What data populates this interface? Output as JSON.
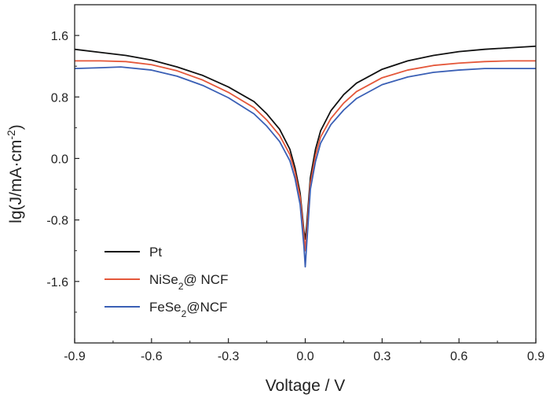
{
  "chart_data": {
    "type": "line",
    "xlabel": "Voltage / V",
    "ylabel": {
      "prefix": "lg(J/mA·cm",
      "sup": "-2",
      "suffix": ")"
    },
    "xlim": [
      -0.9,
      0.9
    ],
    "ylim": [
      -2.4,
      2.0
    ],
    "xticks": [
      -0.9,
      -0.6,
      -0.3,
      0.0,
      0.3,
      0.6,
      0.9
    ],
    "xtick_labels": [
      "-0.9",
      "-0.6",
      "-0.3",
      "0.0",
      "0.3",
      "0.6",
      "0.9"
    ],
    "yticks": [
      -1.6,
      -0.8,
      0.0,
      0.8,
      1.6
    ],
    "ytick_labels": [
      "-1.6",
      "-0.8",
      "0.0",
      "0.8",
      "1.6"
    ],
    "grid": false,
    "legend_position": "bottom-left",
    "series": [
      {
        "name": "Pt",
        "legend": {
          "base": "Pt",
          "sub": "",
          "rest": ""
        },
        "color": "#111111",
        "points": [
          [
            -0.9,
            1.42
          ],
          [
            -0.8,
            1.38
          ],
          [
            -0.7,
            1.34
          ],
          [
            -0.6,
            1.28
          ],
          [
            -0.5,
            1.19
          ],
          [
            -0.4,
            1.08
          ],
          [
            -0.3,
            0.93
          ],
          [
            -0.2,
            0.74
          ],
          [
            -0.15,
            0.58
          ],
          [
            -0.1,
            0.38
          ],
          [
            -0.06,
            0.12
          ],
          [
            -0.04,
            -0.12
          ],
          [
            -0.02,
            -0.45
          ],
          [
            -0.005,
            -0.95
          ],
          [
            0.0,
            -1.05
          ],
          [
            0.005,
            -0.9
          ],
          [
            0.02,
            -0.25
          ],
          [
            0.04,
            0.12
          ],
          [
            0.06,
            0.36
          ],
          [
            0.1,
            0.62
          ],
          [
            0.15,
            0.83
          ],
          [
            0.2,
            0.98
          ],
          [
            0.3,
            1.16
          ],
          [
            0.4,
            1.27
          ],
          [
            0.5,
            1.34
          ],
          [
            0.6,
            1.39
          ],
          [
            0.7,
            1.42
          ],
          [
            0.8,
            1.44
          ],
          [
            0.9,
            1.46
          ]
        ]
      },
      {
        "name": "NiSe2@ NCF",
        "legend": {
          "base": "NiSe",
          "sub": "2",
          "rest": "@ NCF"
        },
        "color": "#e4573a",
        "points": [
          [
            -0.9,
            1.27
          ],
          [
            -0.8,
            1.27
          ],
          [
            -0.7,
            1.26
          ],
          [
            -0.6,
            1.22
          ],
          [
            -0.5,
            1.14
          ],
          [
            -0.4,
            1.02
          ],
          [
            -0.3,
            0.86
          ],
          [
            -0.2,
            0.66
          ],
          [
            -0.15,
            0.5
          ],
          [
            -0.1,
            0.3
          ],
          [
            -0.06,
            0.05
          ],
          [
            -0.04,
            -0.18
          ],
          [
            -0.02,
            -0.5
          ],
          [
            -0.005,
            -1.0
          ],
          [
            0.0,
            -1.2
          ],
          [
            0.005,
            -1.0
          ],
          [
            0.02,
            -0.32
          ],
          [
            0.04,
            0.04
          ],
          [
            0.06,
            0.28
          ],
          [
            0.1,
            0.52
          ],
          [
            0.15,
            0.72
          ],
          [
            0.2,
            0.87
          ],
          [
            0.3,
            1.05
          ],
          [
            0.4,
            1.15
          ],
          [
            0.5,
            1.21
          ],
          [
            0.6,
            1.24
          ],
          [
            0.7,
            1.26
          ],
          [
            0.8,
            1.27
          ],
          [
            0.9,
            1.27
          ]
        ]
      },
      {
        "name": "FeSe2@NCF",
        "legend": {
          "base": "FeSe",
          "sub": "2",
          "rest": "@NCF"
        },
        "color": "#3a5fb5",
        "points": [
          [
            -0.9,
            1.17
          ],
          [
            -0.8,
            1.18
          ],
          [
            -0.72,
            1.19
          ],
          [
            -0.6,
            1.15
          ],
          [
            -0.5,
            1.07
          ],
          [
            -0.4,
            0.95
          ],
          [
            -0.3,
            0.79
          ],
          [
            -0.2,
            0.58
          ],
          [
            -0.15,
            0.42
          ],
          [
            -0.1,
            0.22
          ],
          [
            -0.06,
            -0.03
          ],
          [
            -0.04,
            -0.26
          ],
          [
            -0.02,
            -0.6
          ],
          [
            -0.005,
            -1.15
          ],
          [
            0.0,
            -1.41
          ],
          [
            0.005,
            -1.15
          ],
          [
            0.02,
            -0.4
          ],
          [
            0.04,
            -0.04
          ],
          [
            0.06,
            0.2
          ],
          [
            0.1,
            0.44
          ],
          [
            0.15,
            0.63
          ],
          [
            0.2,
            0.78
          ],
          [
            0.3,
            0.96
          ],
          [
            0.4,
            1.06
          ],
          [
            0.5,
            1.12
          ],
          [
            0.6,
            1.15
          ],
          [
            0.7,
            1.17
          ],
          [
            0.8,
            1.17
          ],
          [
            0.9,
            1.17
          ]
        ]
      }
    ]
  }
}
